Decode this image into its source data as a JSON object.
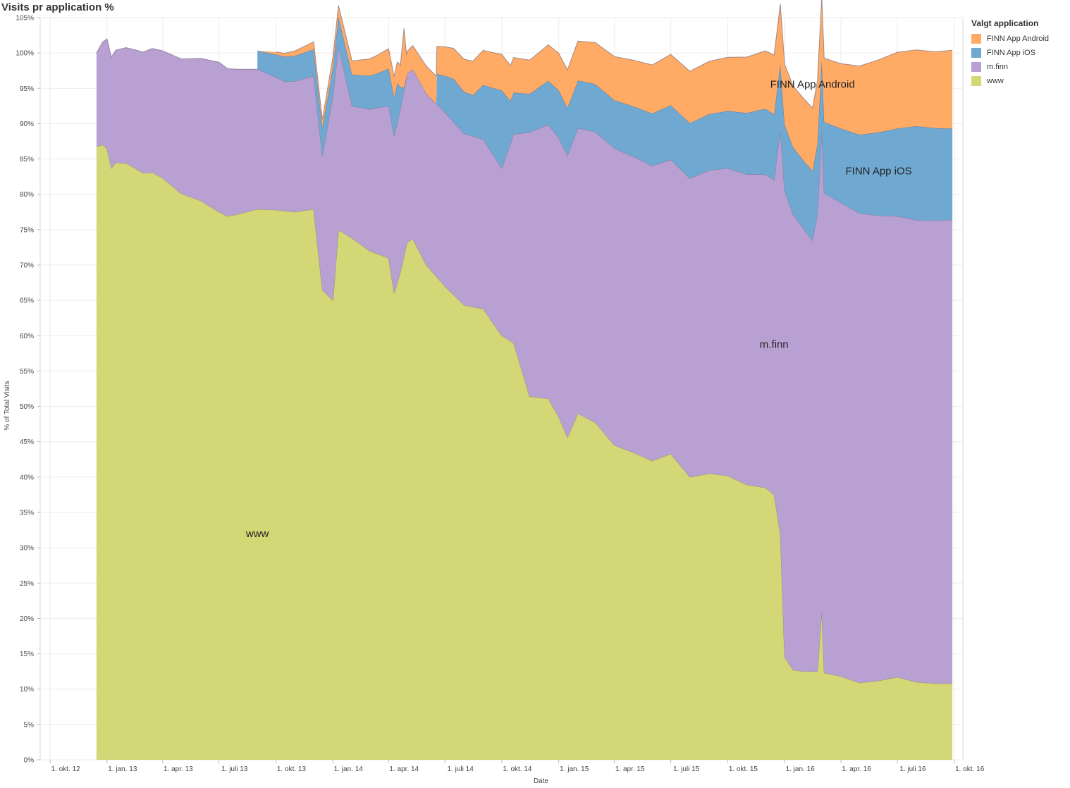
{
  "title": "Visits pr application %",
  "chart_data": {
    "type": "area",
    "stacked": true,
    "title": "Visits pr application %",
    "xlabel": "Date",
    "ylabel": "% of Total Visits",
    "ylim": [
      0,
      105
    ],
    "yticks": [
      0,
      5,
      10,
      15,
      20,
      25,
      30,
      35,
      40,
      45,
      50,
      55,
      60,
      65,
      70,
      75,
      80,
      85,
      90,
      95,
      100,
      105
    ],
    "ytick_labels": [
      "0%",
      "5%",
      "10%",
      "15%",
      "20%",
      "25%",
      "30%",
      "35%",
      "40%",
      "45%",
      "50%",
      "55%",
      "60%",
      "65%",
      "70%",
      "75%",
      "80%",
      "85%",
      "90%",
      "95%",
      "100%",
      "105%"
    ],
    "xlim": [
      "2012-09-15",
      "2016-10-15"
    ],
    "xticks": [
      "2012-10-01",
      "2013-01-01",
      "2013-04-01",
      "2013-07-01",
      "2013-10-01",
      "2014-01-01",
      "2014-04-01",
      "2014-07-01",
      "2014-10-01",
      "2015-01-01",
      "2015-04-01",
      "2015-07-01",
      "2015-10-01",
      "2016-01-01",
      "2016-04-01",
      "2016-07-01",
      "2016-10-01"
    ],
    "xtick_labels": [
      "1. okt. 12",
      "1. jan. 13",
      "1. apr. 13",
      "1. juli 13",
      "1. okt. 13",
      "1. jan. 14",
      "1. apr. 14",
      "1. juli 14",
      "1. okt. 14",
      "1. jan. 15",
      "1. apr. 15",
      "1. juli 15",
      "1. okt. 15",
      "1. jan. 16",
      "1. apr. 16",
      "1. juli 16",
      "1. okt. 16"
    ],
    "grid": true,
    "legend_position": "right",
    "legend_title": "Valgt application",
    "series": [
      {
        "name": "FINN App Android",
        "color": "#ffab66",
        "points": [
          [
            "2013-09-01",
            0
          ],
          [
            "2013-10-15",
            0.5
          ],
          [
            "2013-12-15",
            1.2
          ],
          [
            "2014-03-15",
            2.6
          ],
          [
            "2014-04-20",
            3.1
          ],
          [
            "2014-04-26",
            8.4
          ],
          [
            "2014-04-30",
            3.1
          ],
          [
            "2014-06-01",
            3.9
          ],
          [
            "2014-06-18",
            3.9
          ],
          [
            "2014-08-15",
            4.8
          ],
          [
            "2014-10-01",
            5.1
          ],
          [
            "2014-11-15",
            4.8
          ],
          [
            "2015-01-15",
            5.4
          ],
          [
            "2015-04-01",
            6.2
          ],
          [
            "2015-07-01",
            7.2
          ],
          [
            "2015-10-01",
            7.6
          ],
          [
            "2015-12-01",
            8.2
          ],
          [
            "2016-01-01",
            8.6
          ],
          [
            "2016-04-01",
            9.2
          ],
          [
            "2016-07-01",
            10.8
          ],
          [
            "2016-09-01",
            10.8
          ],
          [
            "2016-09-28",
            11.1
          ]
        ]
      },
      {
        "name": "FINN App iOS",
        "color": "#6fa8d1",
        "points": [
          [
            "2013-09-01",
            2.6
          ],
          [
            "2013-10-15",
            3.5
          ],
          [
            "2013-12-15",
            3.9
          ],
          [
            "2014-03-15",
            4.9
          ],
          [
            "2014-04-15",
            5.6
          ],
          [
            "2014-04-26",
            0.3
          ],
          [
            "2014-04-30",
            0
          ],
          [
            "2014-06-17",
            0
          ],
          [
            "2014-06-18",
            4.3
          ],
          [
            "2014-07-15",
            6.1
          ],
          [
            "2014-08-15",
            5.8
          ],
          [
            "2014-10-01",
            11.0
          ],
          [
            "2014-10-15",
            6.0
          ],
          [
            "2014-11-15",
            5.4
          ],
          [
            "2015-01-01",
            6.7
          ],
          [
            "2015-04-01",
            6.8
          ],
          [
            "2015-07-01",
            7.7
          ],
          [
            "2015-10-01",
            8.1
          ],
          [
            "2015-12-01",
            9.3
          ],
          [
            "2016-01-01",
            9.3
          ],
          [
            "2016-03-01",
            10.0
          ],
          [
            "2016-04-01",
            10.5
          ],
          [
            "2016-07-01",
            12.4
          ],
          [
            "2016-08-01",
            13.3
          ],
          [
            "2016-09-28",
            12.9
          ]
        ]
      },
      {
        "name": "m.finn",
        "color": "#b9a0d2",
        "points": [
          [
            "2012-12-15",
            13.2
          ],
          [
            "2013-01-01",
            15.5
          ],
          [
            "2013-04-01",
            18.0
          ],
          [
            "2013-07-01",
            21.2
          ],
          [
            "2013-09-01",
            19.8
          ],
          [
            "2013-10-15",
            18.3
          ],
          [
            "2013-12-15",
            19.0
          ],
          [
            "2014-01-01",
            28.9
          ],
          [
            "2014-02-01",
            18.7
          ],
          [
            "2014-04-01",
            21.5
          ],
          [
            "2014-05-01",
            23.9
          ],
          [
            "2014-07-01",
            24.6
          ],
          [
            "2014-10-01",
            23.7
          ],
          [
            "2014-11-15",
            37.4
          ],
          [
            "2015-01-01",
            39.5
          ],
          [
            "2015-04-01",
            42.0
          ],
          [
            "2015-07-01",
            41.6
          ],
          [
            "2015-10-01",
            43.5
          ],
          [
            "2015-12-15",
            44.5
          ],
          [
            "2016-01-01",
            66.0
          ],
          [
            "2016-02-15",
            61.0
          ],
          [
            "2016-03-01",
            68.0
          ],
          [
            "2016-04-01",
            67.0
          ],
          [
            "2016-07-01",
            65.2
          ],
          [
            "2016-09-28",
            65.6
          ]
        ]
      },
      {
        "name": "www",
        "color": "#d4d776",
        "points": [
          [
            "2012-12-15",
            86.8
          ],
          [
            "2012-12-25",
            87.0
          ],
          [
            "2013-01-01",
            86.5
          ],
          [
            "2013-01-08",
            83.7
          ],
          [
            "2013-01-15",
            84.5
          ],
          [
            "2013-02-01",
            84.4
          ],
          [
            "2013-03-01",
            83.0
          ],
          [
            "2013-03-15",
            83.1
          ],
          [
            "2013-04-01",
            82.3
          ],
          [
            "2013-05-01",
            80.1
          ],
          [
            "2013-06-01",
            79.1
          ],
          [
            "2013-07-01",
            77.5
          ],
          [
            "2013-07-15",
            76.9
          ],
          [
            "2013-08-01",
            77.2
          ],
          [
            "2013-09-01",
            77.9
          ],
          [
            "2013-10-01",
            77.8
          ],
          [
            "2013-11-01",
            77.5
          ],
          [
            "2013-12-01",
            77.9
          ],
          [
            "2013-12-15",
            66.5
          ],
          [
            "2014-01-01",
            65.0
          ],
          [
            "2014-01-10",
            75.0
          ],
          [
            "2014-02-01",
            73.8
          ],
          [
            "2014-03-01",
            72.0
          ],
          [
            "2014-04-01",
            71.0
          ],
          [
            "2014-04-10",
            66.0
          ],
          [
            "2014-04-20",
            69.0
          ],
          [
            "2014-05-01",
            73.2
          ],
          [
            "2014-05-10",
            73.7
          ],
          [
            "2014-06-01",
            70.0
          ],
          [
            "2014-07-01",
            67.0
          ],
          [
            "2014-08-01",
            64.3
          ],
          [
            "2014-09-01",
            63.8
          ],
          [
            "2014-09-15",
            62.0
          ],
          [
            "2014-10-01",
            60.0
          ],
          [
            "2014-10-20",
            59.0
          ],
          [
            "2014-11-15",
            51.4
          ],
          [
            "2014-12-15",
            51.1
          ],
          [
            "2015-01-01",
            48.5
          ],
          [
            "2015-01-15",
            45.6
          ],
          [
            "2015-02-01",
            49.0
          ],
          [
            "2015-03-01",
            47.7
          ],
          [
            "2015-04-01",
            44.5
          ],
          [
            "2015-05-01",
            43.5
          ],
          [
            "2015-06-01",
            42.3
          ],
          [
            "2015-07-01",
            43.3
          ],
          [
            "2015-08-01",
            40.0
          ],
          [
            "2015-09-01",
            40.5
          ],
          [
            "2015-10-01",
            40.2
          ],
          [
            "2015-11-01",
            38.9
          ],
          [
            "2015-12-01",
            38.5
          ],
          [
            "2015-12-15",
            37.5
          ],
          [
            "2015-12-25",
            32.0
          ],
          [
            "2016-01-01",
            14.5
          ],
          [
            "2016-01-15",
            12.7
          ],
          [
            "2016-02-01",
            12.5
          ],
          [
            "2016-02-23",
            12.5
          ],
          [
            "2016-03-01",
            21.0
          ],
          [
            "2016-03-05",
            12.3
          ],
          [
            "2016-04-01",
            11.8
          ],
          [
            "2016-05-01",
            10.9
          ],
          [
            "2016-06-01",
            11.2
          ],
          [
            "2016-07-01",
            11.7
          ],
          [
            "2016-08-01",
            11.0
          ],
          [
            "2016-09-01",
            10.8
          ],
          [
            "2016-09-28",
            10.8
          ]
        ]
      }
    ],
    "annotations": [
      {
        "text": "FINN App Android",
        "x": "2016-02-15",
        "y": 95.1
      },
      {
        "text": "FINN App iOS",
        "x": "2016-06-01",
        "y": 82.8
      },
      {
        "text": "m.finn",
        "x": "2015-12-15",
        "y": 58.3
      },
      {
        "text": "www",
        "x": "2013-09-01",
        "y": 31.5
      }
    ]
  }
}
